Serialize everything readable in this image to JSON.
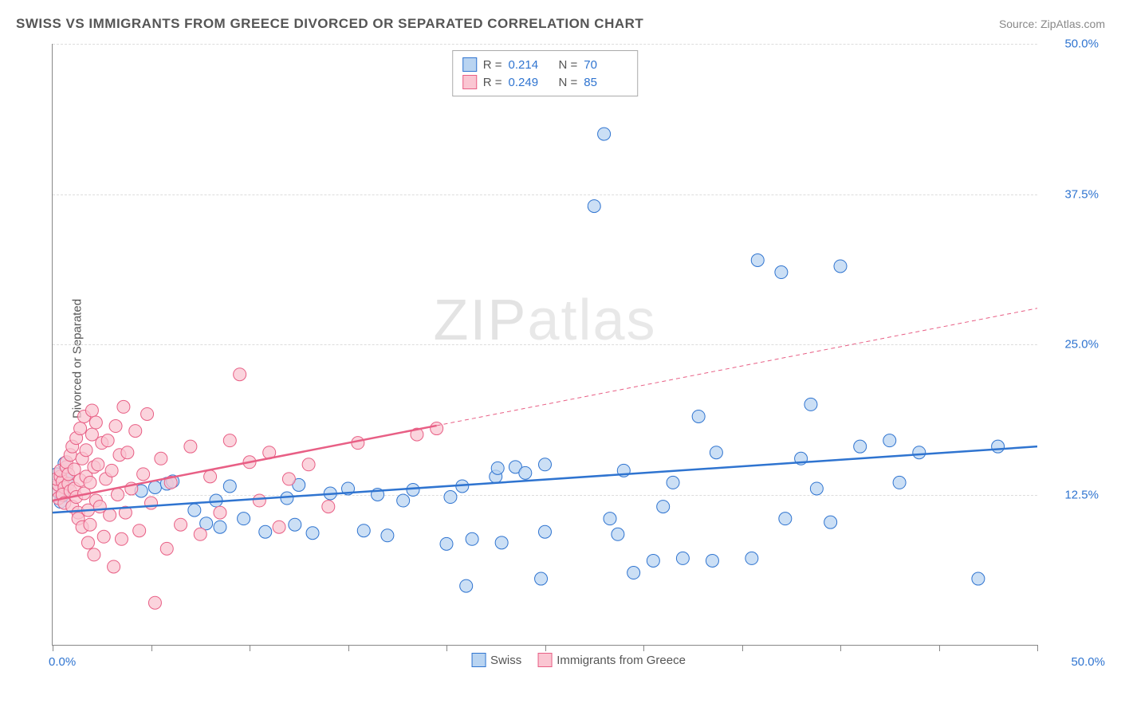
{
  "title": "SWISS VS IMMIGRANTS FROM GREECE DIVORCED OR SEPARATED CORRELATION CHART",
  "source_prefix": "Source: ",
  "source_name": "ZipAtlas.com",
  "ylabel": "Divorced or Separated",
  "watermark_bold": "ZIP",
  "watermark_thin": "atlas",
  "chart": {
    "type": "scatter",
    "background_color": "#ffffff",
    "grid_color": "#dddddd",
    "axis_color": "#888888",
    "x_range": [
      0,
      50
    ],
    "y_range": [
      0,
      50
    ],
    "y_ticks": [
      12.5,
      25.0,
      37.5,
      50.0
    ],
    "y_tick_labels": [
      "12.5%",
      "25.0%",
      "37.5%",
      "50.0%"
    ],
    "x_ticks": [
      0,
      5,
      10,
      15,
      20,
      25,
      30,
      35,
      40,
      45,
      50
    ],
    "x_label_start": "0.0%",
    "x_label_end": "50.0%",
    "marker_radius": 8,
    "series": [
      {
        "name": "Swiss",
        "key": "swiss",
        "color_fill": "#b9d4f1",
        "color_stroke": "#2f74d0",
        "R": "0.214",
        "N": "70",
        "trend": {
          "x1": 0,
          "y1": 11.0,
          "x2": 50,
          "y2": 16.5,
          "solid_to_x": 50
        },
        "points": [
          [
            0.3,
            12.7
          ],
          [
            0.2,
            14.2
          ],
          [
            0.4,
            11.9
          ],
          [
            0.3,
            13.3
          ],
          [
            0.6,
            15.1
          ],
          [
            0.5,
            12.4
          ],
          [
            0.7,
            13.8
          ],
          [
            4.5,
            12.8
          ],
          [
            5.2,
            13.1
          ],
          [
            5.8,
            13.4
          ],
          [
            6.1,
            13.6
          ],
          [
            7.2,
            11.2
          ],
          [
            7.8,
            10.1
          ],
          [
            8.3,
            12.0
          ],
          [
            8.5,
            9.8
          ],
          [
            9.0,
            13.2
          ],
          [
            9.7,
            10.5
          ],
          [
            10.8,
            9.4
          ],
          [
            11.9,
            12.2
          ],
          [
            12.3,
            10.0
          ],
          [
            12.5,
            13.3
          ],
          [
            13.2,
            9.3
          ],
          [
            14.1,
            12.6
          ],
          [
            15.0,
            13.0
          ],
          [
            15.8,
            9.5
          ],
          [
            16.5,
            12.5
          ],
          [
            17.0,
            9.1
          ],
          [
            17.8,
            12.0
          ],
          [
            18.3,
            12.9
          ],
          [
            20.0,
            8.4
          ],
          [
            20.2,
            12.3
          ],
          [
            20.8,
            13.2
          ],
          [
            21.0,
            4.9
          ],
          [
            21.3,
            8.8
          ],
          [
            22.5,
            14.0
          ],
          [
            22.6,
            14.7
          ],
          [
            22.8,
            8.5
          ],
          [
            23.5,
            14.8
          ],
          [
            24.0,
            14.3
          ],
          [
            24.8,
            5.5
          ],
          [
            25.0,
            15.0
          ],
          [
            25.0,
            9.4
          ],
          [
            27.5,
            36.5
          ],
          [
            28.0,
            42.5
          ],
          [
            28.3,
            10.5
          ],
          [
            28.7,
            9.2
          ],
          [
            29.0,
            14.5
          ],
          [
            29.5,
            6.0
          ],
          [
            30.5,
            7.0
          ],
          [
            31.0,
            11.5
          ],
          [
            31.5,
            13.5
          ],
          [
            32.0,
            7.2
          ],
          [
            32.8,
            19.0
          ],
          [
            33.5,
            7.0
          ],
          [
            33.7,
            16.0
          ],
          [
            35.5,
            7.2
          ],
          [
            35.8,
            32.0
          ],
          [
            37.0,
            31.0
          ],
          [
            37.2,
            10.5
          ],
          [
            38.0,
            15.5
          ],
          [
            38.5,
            20.0
          ],
          [
            38.8,
            13.0
          ],
          [
            39.5,
            10.2
          ],
          [
            40.0,
            31.5
          ],
          [
            41.0,
            16.5
          ],
          [
            42.5,
            17.0
          ],
          [
            43.0,
            13.5
          ],
          [
            44.0,
            16.0
          ],
          [
            47.0,
            5.5
          ],
          [
            48.0,
            16.5
          ]
        ]
      },
      {
        "name": "Immigrants from Greece",
        "key": "greece",
        "color_fill": "#fac6d2",
        "color_stroke": "#e85f85",
        "R": "0.249",
        "N": "85",
        "trend": {
          "x1": 0,
          "y1": 12.0,
          "x2": 50,
          "y2": 28.0,
          "solid_to_x": 19.5
        },
        "points": [
          [
            0.2,
            12.9
          ],
          [
            0.3,
            13.3
          ],
          [
            0.2,
            13.8
          ],
          [
            0.4,
            14.0
          ],
          [
            0.3,
            12.2
          ],
          [
            0.5,
            13.6
          ],
          [
            0.4,
            14.5
          ],
          [
            0.6,
            13.1
          ],
          [
            0.5,
            12.5
          ],
          [
            0.7,
            14.8
          ],
          [
            0.6,
            11.8
          ],
          [
            0.8,
            13.4
          ],
          [
            0.7,
            15.2
          ],
          [
            0.9,
            12.8
          ],
          [
            0.8,
            14.2
          ],
          [
            1.0,
            11.5
          ],
          [
            0.9,
            15.8
          ],
          [
            1.1,
            13.0
          ],
          [
            1.0,
            16.5
          ],
          [
            1.2,
            12.3
          ],
          [
            1.1,
            14.6
          ],
          [
            1.3,
            11.0
          ],
          [
            1.2,
            17.2
          ],
          [
            1.4,
            13.7
          ],
          [
            1.3,
            10.5
          ],
          [
            1.5,
            15.5
          ],
          [
            1.4,
            18.0
          ],
          [
            1.6,
            12.6
          ],
          [
            1.5,
            9.8
          ],
          [
            1.7,
            14.0
          ],
          [
            1.6,
            19.0
          ],
          [
            1.8,
            11.2
          ],
          [
            1.7,
            16.2
          ],
          [
            1.9,
            13.5
          ],
          [
            1.8,
            8.5
          ],
          [
            2.0,
            17.5
          ],
          [
            1.9,
            10.0
          ],
          [
            2.1,
            14.8
          ],
          [
            2.0,
            19.5
          ],
          [
            2.2,
            12.0
          ],
          [
            2.1,
            7.5
          ],
          [
            2.3,
            15.0
          ],
          [
            2.2,
            18.5
          ],
          [
            2.4,
            11.5
          ],
          [
            2.5,
            16.8
          ],
          [
            2.6,
            9.0
          ],
          [
            2.7,
            13.8
          ],
          [
            2.8,
            17.0
          ],
          [
            2.9,
            10.8
          ],
          [
            3.0,
            14.5
          ],
          [
            3.1,
            6.5
          ],
          [
            3.2,
            18.2
          ],
          [
            3.3,
            12.5
          ],
          [
            3.4,
            15.8
          ],
          [
            3.5,
            8.8
          ],
          [
            3.6,
            19.8
          ],
          [
            3.7,
            11.0
          ],
          [
            3.8,
            16.0
          ],
          [
            4.0,
            13.0
          ],
          [
            4.2,
            17.8
          ],
          [
            4.4,
            9.5
          ],
          [
            4.6,
            14.2
          ],
          [
            4.8,
            19.2
          ],
          [
            5.0,
            11.8
          ],
          [
            5.2,
            3.5
          ],
          [
            5.5,
            15.5
          ],
          [
            5.8,
            8.0
          ],
          [
            6.0,
            13.5
          ],
          [
            6.5,
            10.0
          ],
          [
            7.0,
            16.5
          ],
          [
            7.5,
            9.2
          ],
          [
            8.0,
            14.0
          ],
          [
            8.5,
            11.0
          ],
          [
            9.0,
            17.0
          ],
          [
            9.5,
            22.5
          ],
          [
            10.0,
            15.2
          ],
          [
            10.5,
            12.0
          ],
          [
            11.0,
            16.0
          ],
          [
            11.5,
            9.8
          ],
          [
            12.0,
            13.8
          ],
          [
            13.0,
            15.0
          ],
          [
            14.0,
            11.5
          ],
          [
            15.5,
            16.8
          ],
          [
            18.5,
            17.5
          ],
          [
            19.5,
            18.0
          ]
        ]
      }
    ]
  },
  "legend_bottom": [
    {
      "swatch": "blue",
      "label": "Swiss"
    },
    {
      "swatch": "pink",
      "label": "Immigrants from Greece"
    }
  ]
}
